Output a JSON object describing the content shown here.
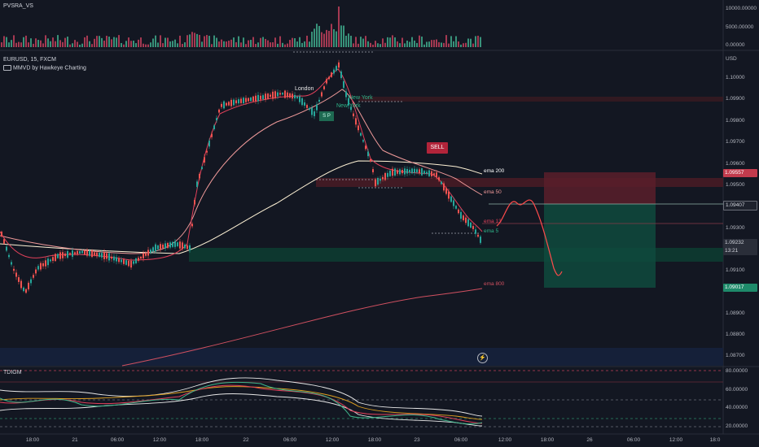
{
  "volume_panel": {
    "title": "PVSRA_VS",
    "y_ticks": [
      "10000.00000",
      "5000.00000",
      "0.00000"
    ]
  },
  "main_panel": {
    "symbol_line": "EURUSD, 15, FXCM",
    "indicator_line": "MMVD by Hawkeye Charting",
    "currency": "USD",
    "y_ticks": [
      "1.10000",
      "1.09900",
      "1.09800",
      "1.09700",
      "1.09600",
      "1.09500",
      "1.09300",
      "1.09100",
      "1.08900",
      "1.08800",
      "1.08700"
    ],
    "price_tags": {
      "stop": "1.09557",
      "entry": "1.09407",
      "current": "1.09232",
      "countdown": "13:21",
      "target": "1.09017"
    },
    "session_labels": {
      "london": "London",
      "new_york": "New York",
      "new_york_2": "New York",
      "small_box": "S P"
    },
    "signal": "SELL",
    "ema_labels": {
      "ema200": "ema 200",
      "ema50": "ema 50",
      "ema13": "ema 13",
      "ema5": "ema 5",
      "ema800": "ema 800"
    },
    "colors": {
      "background": "#131722",
      "bull": "#26a69a",
      "bear": "#ef5350",
      "ema200": "#fff3d6",
      "ema50": "#f4a0a0",
      "ema13": "#e0405a",
      "ema800": "#d05060",
      "sell_box": "#b2243a",
      "long_zone": "#0d5a47",
      "short_zone": "#6e1d28"
    }
  },
  "tdi_panel": {
    "title": "TDIGM",
    "y_ticks": [
      "80.00000",
      "60.00000",
      "40.00000",
      "20.00000"
    ]
  },
  "x_axis": {
    "ticks": [
      "18:00",
      "21",
      "06:00",
      "12:00",
      "18:00",
      "22",
      "06:00",
      "12:00",
      "18:00",
      "23",
      "06:00",
      "12:00",
      "18:00",
      "26",
      "06:00",
      "12:00",
      "18:0"
    ]
  }
}
